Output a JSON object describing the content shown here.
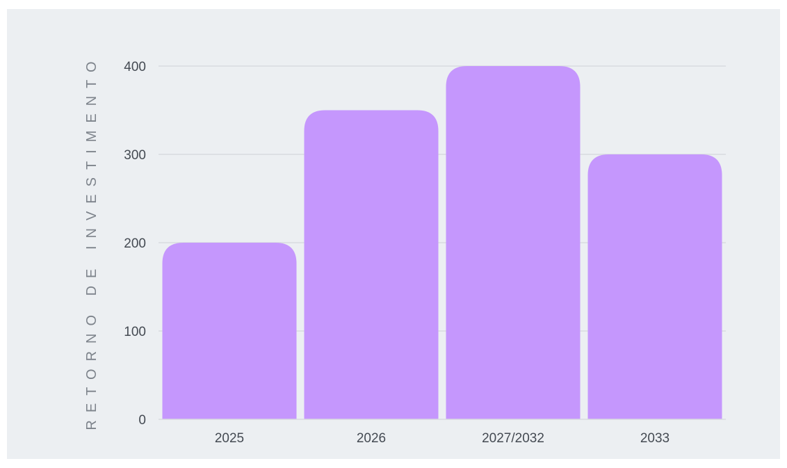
{
  "chart_data": {
    "type": "bar",
    "title": "",
    "xlabel": "",
    "ylabel": "RETORNO DE INVESTIMENTO",
    "categories": [
      "2025",
      "2026",
      "2027/2032",
      "2033"
    ],
    "values": [
      200,
      350,
      400,
      300
    ],
    "ylim": [
      0,
      400
    ],
    "yticks": [
      0,
      100,
      200,
      300,
      400
    ],
    "grid": true,
    "colors": {
      "bar": "#c597fd",
      "grid": "#d8dbdf",
      "background": "#eceff2"
    }
  }
}
